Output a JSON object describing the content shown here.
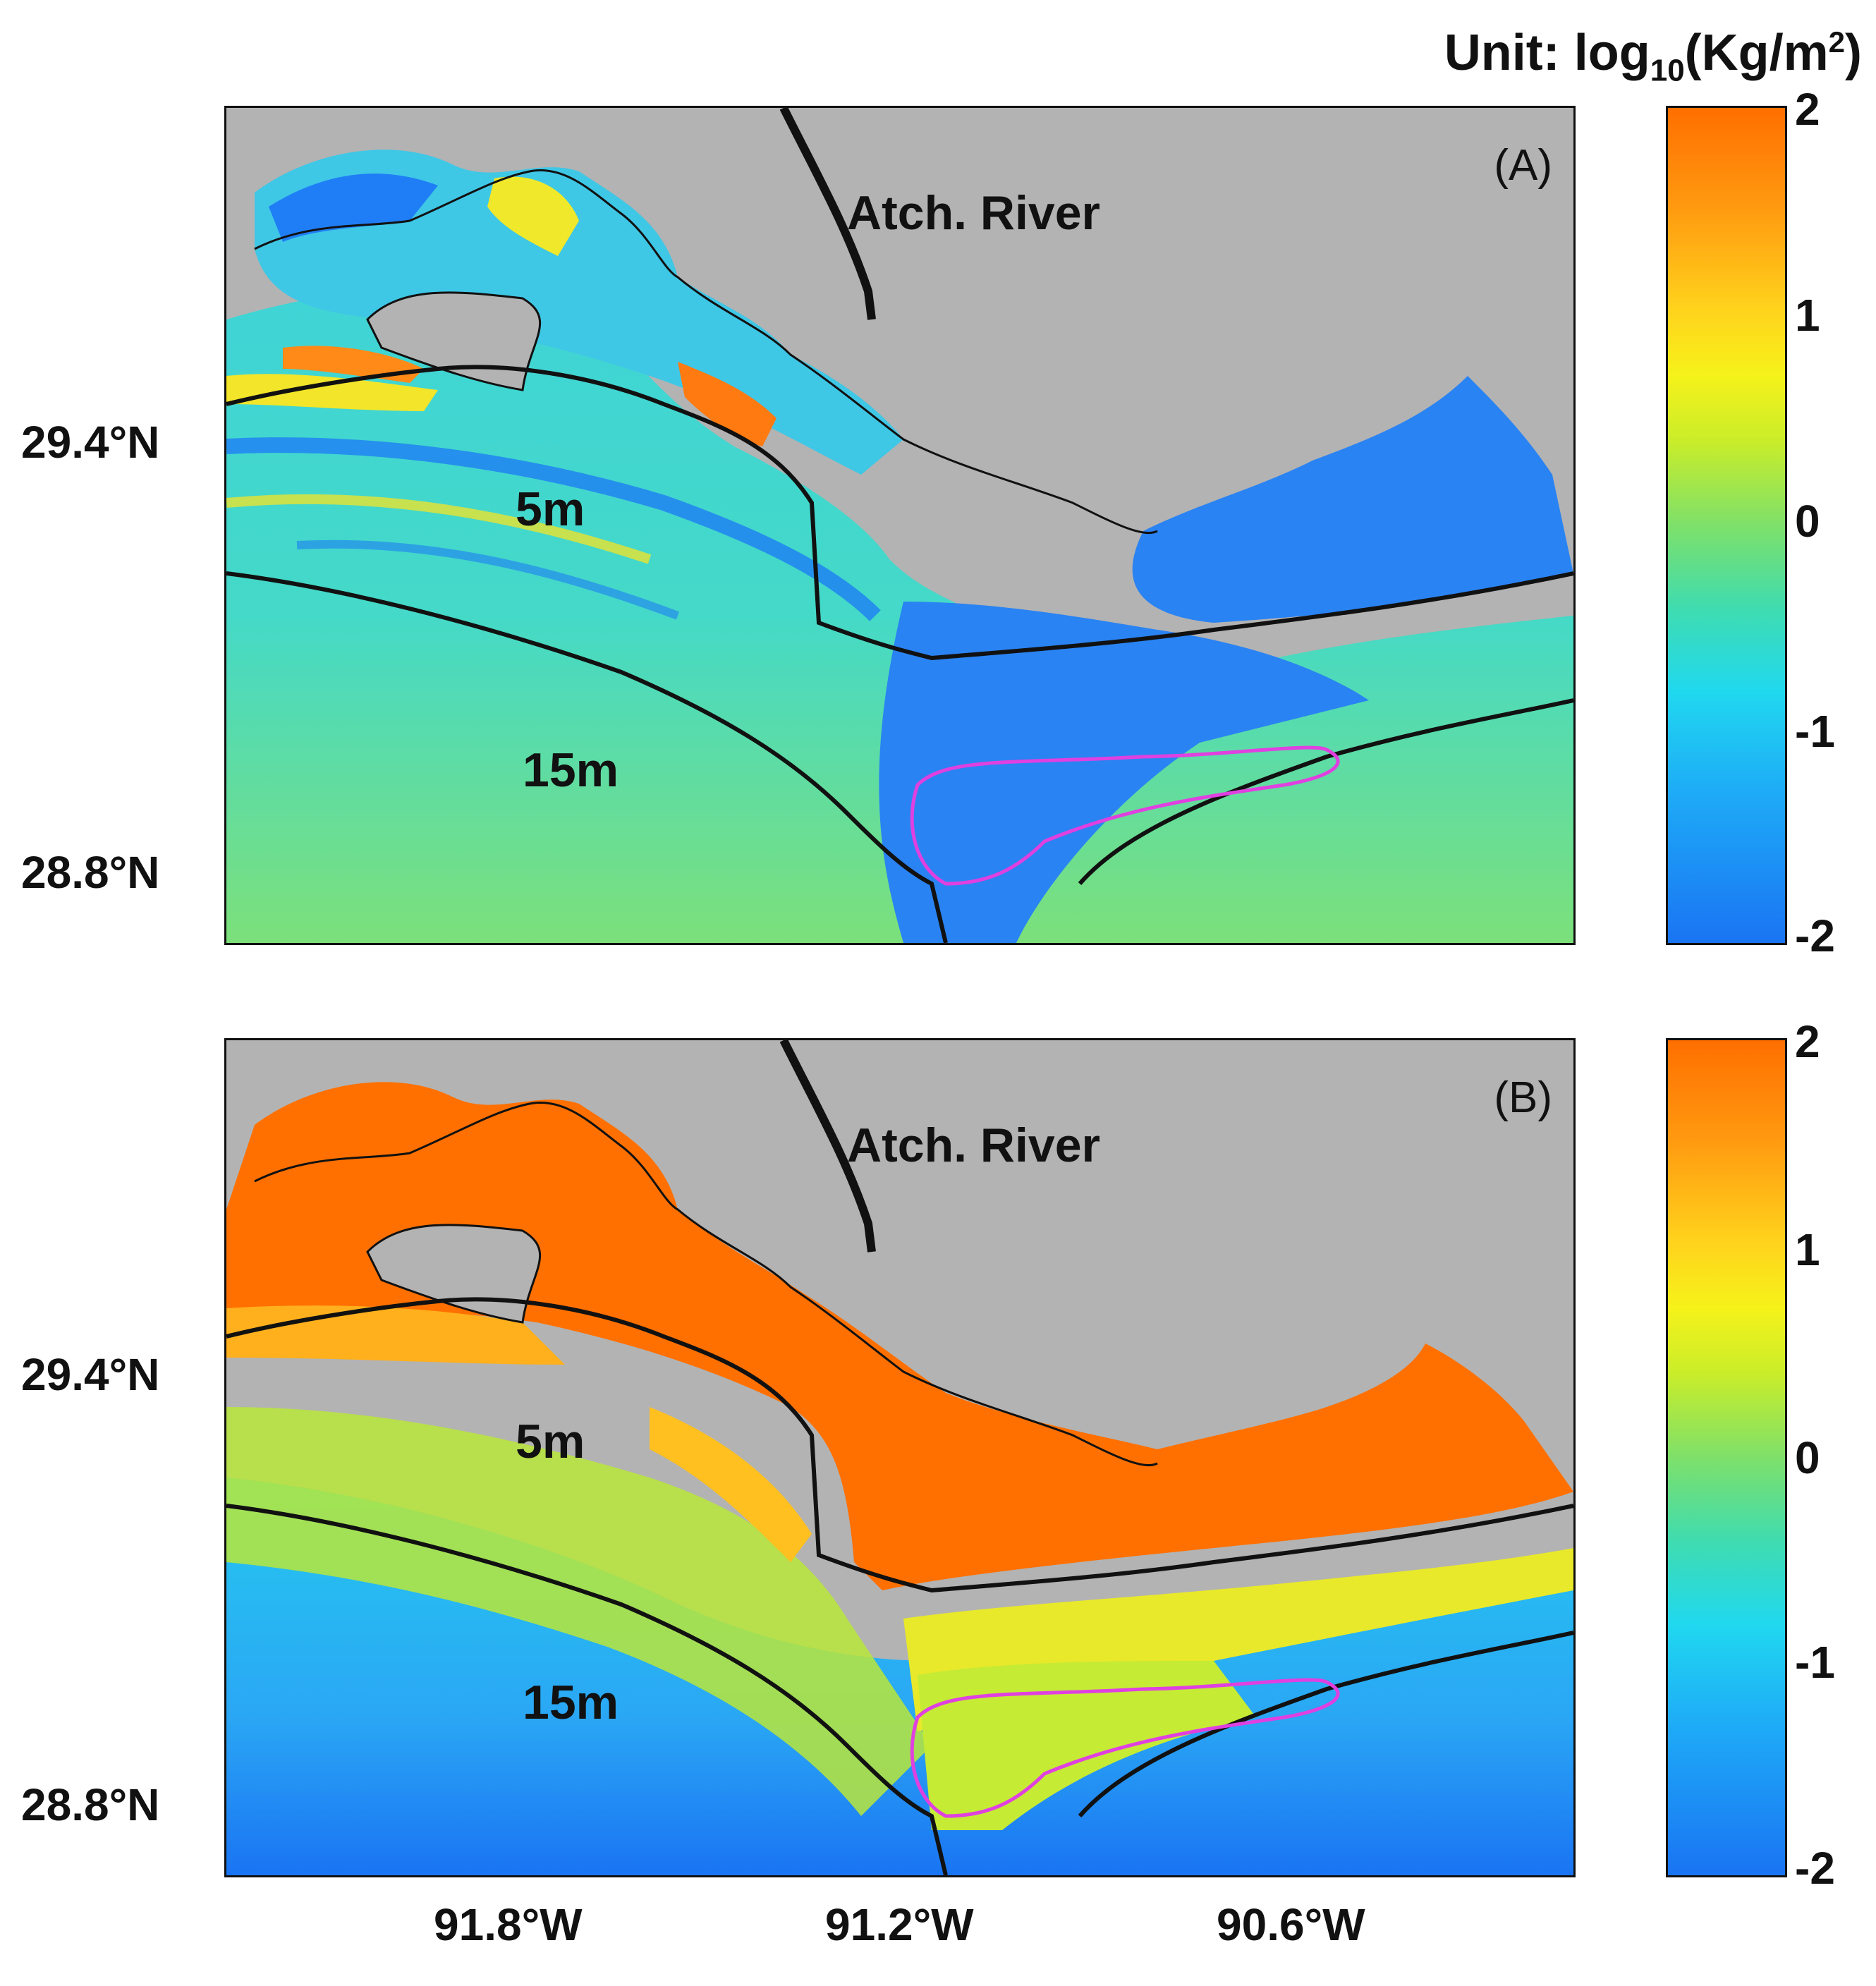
{
  "unit": {
    "prefix": "Unit: log",
    "sub": "10",
    "mid": "(Kg/m",
    "sup": "2",
    "suffix": ")"
  },
  "panels": [
    {
      "tag": "(A)",
      "river_label": "Atch. River",
      "contour_5": "5m",
      "contour_15": "15m"
    },
    {
      "tag": "(B)",
      "river_label": "Atch. River",
      "contour_5": "5m",
      "contour_15": "15m"
    }
  ],
  "axes": {
    "latitudes": [
      "29.4°N",
      "28.8°N"
    ],
    "longitudes": [
      "91.8°W",
      "91.2°W",
      "90.6°W"
    ]
  },
  "colorbar": {
    "ticks": [
      "2",
      "1",
      "0",
      "-1",
      "-2"
    ],
    "range": [
      -2,
      2
    ],
    "colors": {
      "high": "#ff6f00",
      "mid": "#7ee06a",
      "low": "#1a74f3"
    }
  },
  "colors": {
    "land": "#b3b3b3",
    "outline": "#111111",
    "polygon": "#e040e0"
  }
}
